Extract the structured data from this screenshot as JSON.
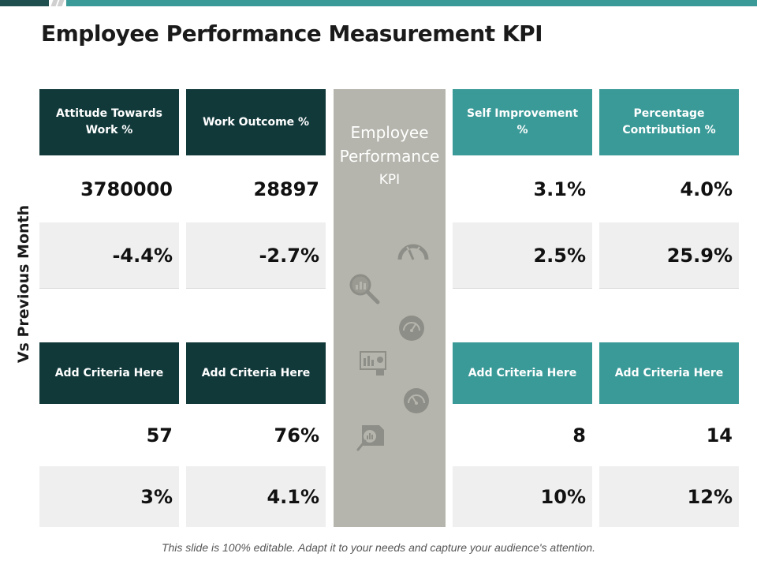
{
  "title": "Employee Performance Measurement KPI",
  "side_label": "Vs Previous Month",
  "center": {
    "line1": "Employee",
    "line2": "Performance",
    "line3": "KPI"
  },
  "top_section": {
    "headers": [
      "Attitude Towards Work %",
      "Work Outcome %",
      "Self Improvement %",
      "Percentage Contribution %"
    ],
    "row1": [
      "3780000",
      "28897",
      "3.1%",
      "4.0%"
    ],
    "row2": [
      "-4.4%",
      "-2.7%",
      "2.5%",
      "25.9%"
    ]
  },
  "bottom_section": {
    "headers": [
      "Add Criteria Here",
      "Add Criteria Here",
      "Add Criteria Here",
      "Add Criteria Here"
    ],
    "row1": [
      "57",
      "76%",
      "8",
      "14"
    ],
    "row2": [
      "3%",
      "4.1%",
      "10%",
      "12%"
    ]
  },
  "colors": {
    "dark_teal": "#12393a",
    "teal": "#3a9a98",
    "center_grey": "#b5b5ad",
    "icon_grey": "#8e8e88"
  },
  "footer": "This slide is 100% editable. Adapt it to your needs and capture your audience's attention.",
  "icons": [
    "gauge-arc-icon",
    "magnifier-chart-icon",
    "speedometer-icon",
    "dashboard-board-icon",
    "speedometer-icon",
    "report-search-icon"
  ]
}
